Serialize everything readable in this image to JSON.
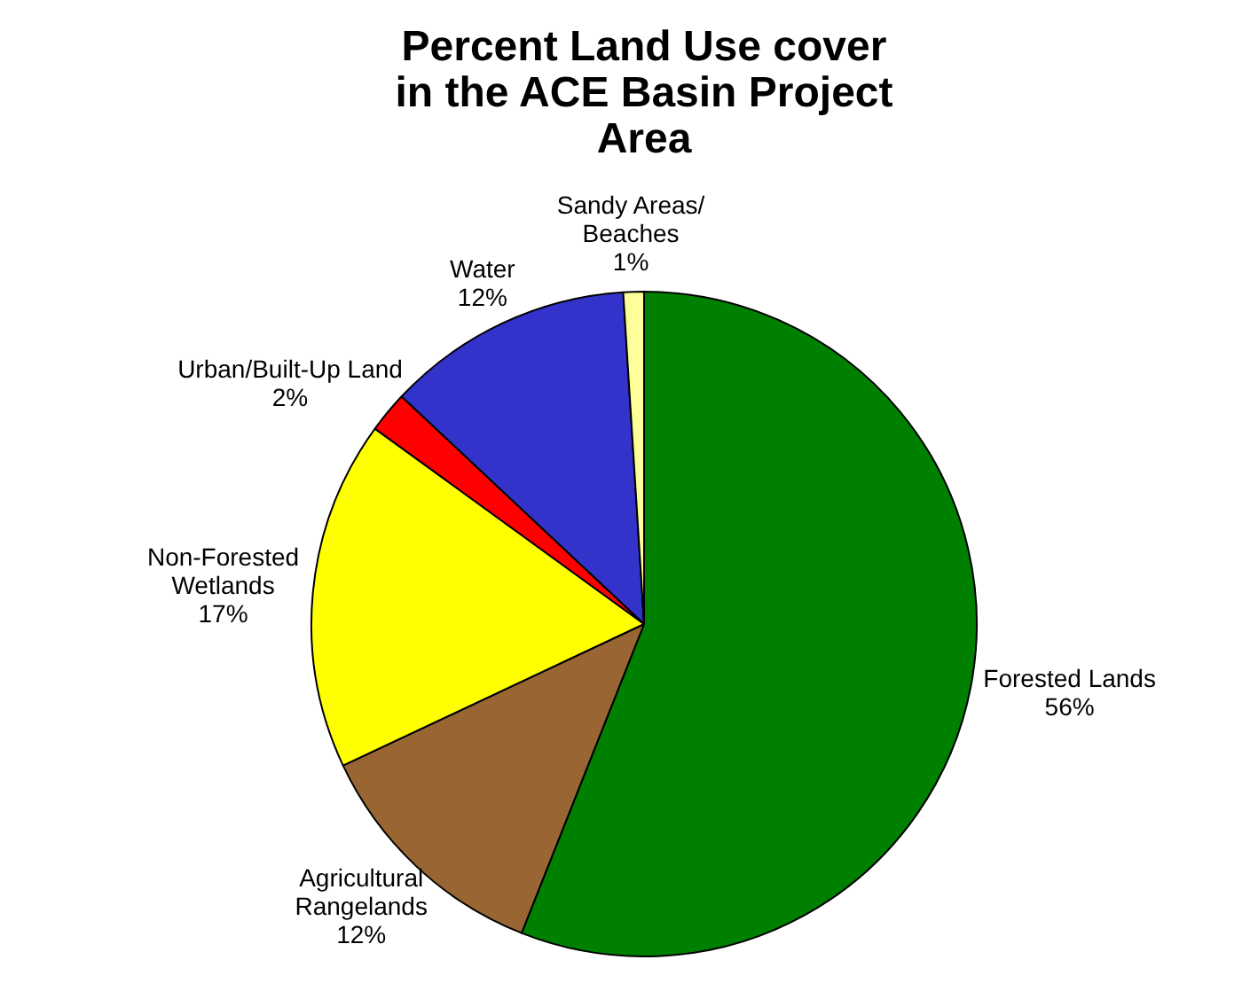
{
  "chart_data": {
    "type": "pie",
    "title": "Percent Land Use cover in the ACE Basin Project Area",
    "categories": [
      "Forested Lands",
      "Agricultural\nRangelands",
      "Non-Forested\nWetlands",
      "Urban/Built-Up Land",
      "Water",
      "Sandy Areas/\nBeaches"
    ],
    "values": [
      56,
      12,
      17,
      2,
      12,
      1
    ],
    "colors": [
      "#008000",
      "#996633",
      "#ffff00",
      "#ff0000",
      "#3333cc",
      "#ffff99"
    ],
    "value_labels": [
      "56%",
      "12%",
      "17%",
      "2%",
      "12%",
      "1%"
    ],
    "legend": false
  }
}
